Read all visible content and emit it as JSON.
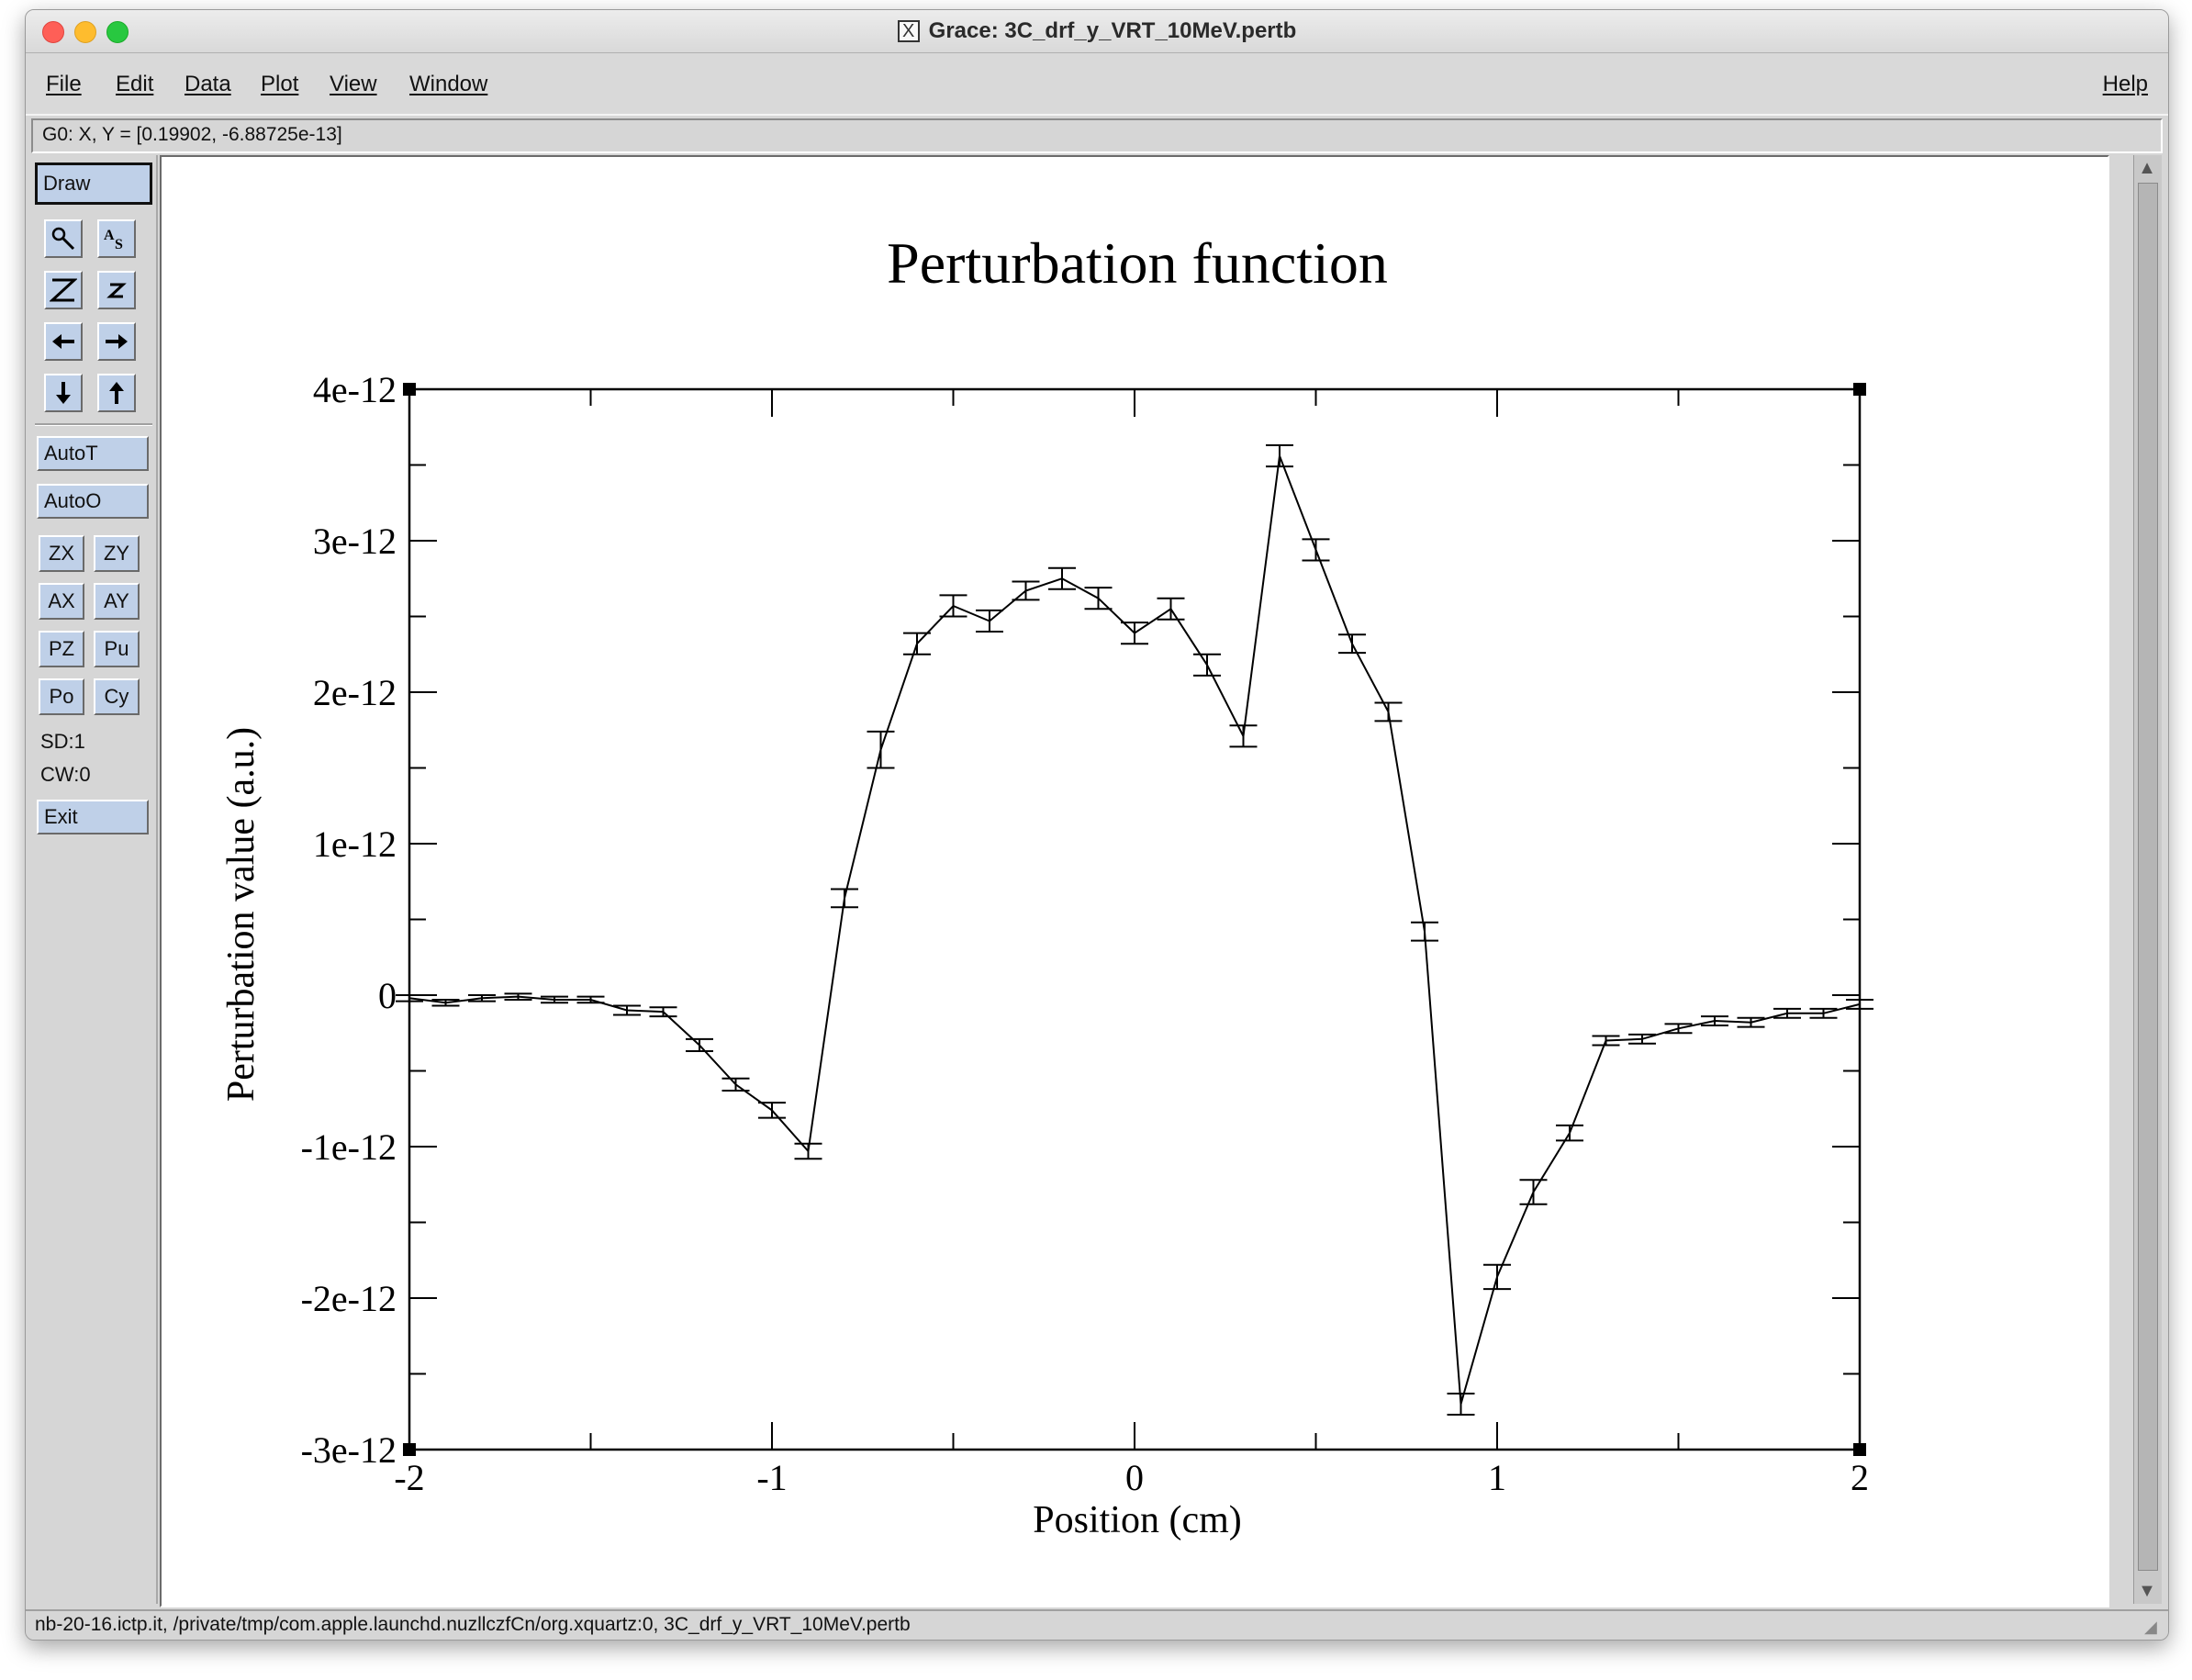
{
  "window": {
    "title": "Grace: 3C_drf_y_VRT_10MeV.pertb",
    "title_icon": "x11-icon"
  },
  "menu": {
    "items": [
      "File",
      "Edit",
      "Data",
      "Plot",
      "View",
      "Window"
    ],
    "help": "Help"
  },
  "status_line": "G0: X, Y = [0.19902, -6.88725e-13]",
  "toolbar": {
    "draw": "Draw",
    "icons": [
      "zoom-icon",
      "autoscale-text-icon",
      "zoom-z-large-icon",
      "zoom-z-small-icon",
      "left-arrow-icon",
      "right-arrow-icon",
      "down-arrow-icon",
      "up-arrow-icon"
    ],
    "autot": "AutoT",
    "autoo": "AutoO",
    "zx": "ZX",
    "zy": "ZY",
    "ax": "AX",
    "ay": "AY",
    "pz": "PZ",
    "pu": "Pu",
    "po": "Po",
    "cy": "Cy",
    "sd": "SD:1",
    "cw": "CW:0",
    "exit": "Exit"
  },
  "bottom_bar": "nb-20-16.ictp.it, /private/tmp/com.apple.launchd.nuzllczfCn/org.xquartz:0, 3C_drf_y_VRT_10MeV.pertb",
  "chart_data": {
    "type": "line",
    "title": "Perturbation function",
    "xlabel": "Position (cm)",
    "ylabel": "Perturbation value (a.u.)",
    "xlim": [
      -2,
      2
    ],
    "ylim": [
      -3e-12,
      4e-12
    ],
    "x_ticks": [
      "-2",
      "-1",
      "0",
      "1",
      "2"
    ],
    "y_ticks": [
      "-3e-12",
      "-2e-12",
      "-1e-12",
      "0",
      "1e-12",
      "2e-12",
      "3e-12",
      "4e-12"
    ],
    "error_bars": true,
    "grid": false,
    "legend": "none",
    "x": [
      -2.0,
      -1.9,
      -1.8,
      -1.7,
      -1.6,
      -1.5,
      -1.4,
      -1.3,
      -1.2,
      -1.1,
      -1.0,
      -0.9,
      -0.8,
      -0.7,
      -0.6,
      -0.5,
      -0.4,
      -0.3,
      -0.2,
      -0.1,
      0.0,
      0.1,
      0.2,
      0.3,
      0.4,
      0.5,
      0.6,
      0.7,
      0.8,
      0.9,
      1.0,
      1.1,
      1.2,
      1.3,
      1.4,
      1.5,
      1.6,
      1.7,
      1.8,
      1.9,
      2.0
    ],
    "y": [
      -2e-14,
      -5e-14,
      -2e-14,
      -1e-14,
      -3e-14,
      -3e-14,
      -1e-13,
      -1.1e-13,
      -3.3e-13,
      -5.9e-13,
      -7.6e-13,
      -1.03e-12,
      6.4e-13,
      1.62e-12,
      2.32e-12,
      2.57e-12,
      2.47e-12,
      2.67e-12,
      2.75e-12,
      2.62e-12,
      2.39e-12,
      2.55e-12,
      2.18e-12,
      1.71e-12,
      3.56e-12,
      2.94e-12,
      2.32e-12,
      1.87e-12,
      4.2e-13,
      -2.7e-12,
      -1.86e-12,
      -1.3e-12,
      -9.1e-13,
      -3e-13,
      -2.9e-13,
      -2.2e-13,
      -1.7e-13,
      -1.8e-13,
      -1.2e-13,
      -1.2e-13,
      -6e-14
    ],
    "yerr": [
      2e-14,
      2e-14,
      2e-14,
      2e-14,
      2e-14,
      2e-14,
      3e-14,
      3e-14,
      4e-14,
      4e-14,
      5e-14,
      5e-14,
      6e-14,
      1.2e-13,
      7e-14,
      7e-14,
      7e-14,
      6e-14,
      7e-14,
      7e-14,
      7e-14,
      7e-14,
      7e-14,
      7e-14,
      7e-14,
      7e-14,
      6e-14,
      6e-14,
      6e-14,
      7e-14,
      8e-14,
      8e-14,
      5e-14,
      3e-14,
      3e-14,
      3e-14,
      3e-14,
      3e-14,
      3e-14,
      3e-14,
      3e-14
    ]
  }
}
